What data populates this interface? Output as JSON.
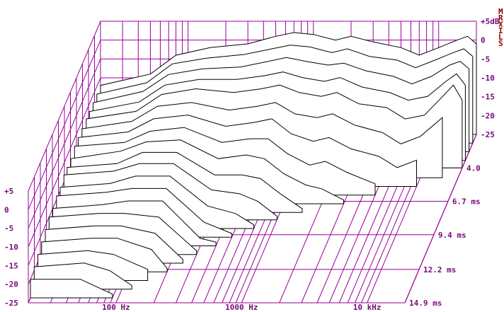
{
  "chart_data": {
    "type": "waterfall",
    "title": "",
    "x_scale": "log",
    "x_range_hz": [
      20,
      20000
    ],
    "x_tick_labels": [
      "100 Hz",
      "1000 Hz",
      "10 kHz"
    ],
    "x_tick_values_hz": [
      100,
      1000,
      10000
    ],
    "y_range_db": [
      -25,
      5
    ],
    "y_tick_labels_back": [
      "+5dB",
      "0",
      "-5",
      "-10",
      "-15",
      "-20",
      "-25"
    ],
    "y_tick_labels_front": [
      "+5",
      "0",
      "-5",
      "-10",
      "-15",
      "-20",
      "-25"
    ],
    "time_tick_labels": [
      "4.0",
      "6.7 ms",
      "9.4 ms",
      "12.2 ms",
      "14.9 ms"
    ],
    "time_range_ms": [
      1.3,
      14.9
    ],
    "corner_letters": [
      "M",
      "R",
      "X",
      "I",
      "L",
      "S"
    ],
    "grid_color": "#9b009b",
    "trace_color": "#000000",
    "slices": [
      {
        "time_ms": 1.3,
        "cutoff_hz": 20000,
        "points": [
          [
            20,
            -12
          ],
          [
            50,
            -9
          ],
          [
            80,
            -4
          ],
          [
            150,
            -2
          ],
          [
            300,
            -1
          ],
          [
            500,
            1
          ],
          [
            700,
            2
          ],
          [
            1000,
            1.5
          ],
          [
            1500,
            0
          ],
          [
            2000,
            1
          ],
          [
            3000,
            -0.5
          ],
          [
            5000,
            -2
          ],
          [
            7000,
            -4
          ],
          [
            10000,
            -2
          ],
          [
            14000,
            0
          ],
          [
            17000,
            1
          ],
          [
            20000,
            -1
          ]
        ]
      },
      {
        "time_ms": 2.0,
        "cutoff_hz": 20000,
        "points": [
          [
            20,
            -12
          ],
          [
            50,
            -9
          ],
          [
            80,
            -4
          ],
          [
            150,
            -2.5
          ],
          [
            300,
            -1.5
          ],
          [
            500,
            0
          ],
          [
            700,
            1
          ],
          [
            1000,
            0.5
          ],
          [
            1500,
            -1
          ],
          [
            2000,
            0
          ],
          [
            3000,
            -2
          ],
          [
            5000,
            -3
          ],
          [
            7000,
            -5
          ],
          [
            10000,
            -3
          ],
          [
            14000,
            -1
          ],
          [
            17000,
            0
          ],
          [
            20000,
            -2
          ]
        ]
      },
      {
        "time_ms": 2.7,
        "cutoff_hz": 20000,
        "points": [
          [
            20,
            -12
          ],
          [
            50,
            -9
          ],
          [
            80,
            -4.5
          ],
          [
            150,
            -3
          ],
          [
            300,
            -2.5
          ],
          [
            500,
            -1
          ],
          [
            700,
            0
          ],
          [
            1000,
            -1
          ],
          [
            1500,
            -2
          ],
          [
            2000,
            -1.5
          ],
          [
            3000,
            -3.5
          ],
          [
            5000,
            -5
          ],
          [
            7000,
            -7
          ],
          [
            10000,
            -5
          ],
          [
            14000,
            -2
          ],
          [
            17000,
            -1
          ],
          [
            20000,
            -3
          ]
        ]
      },
      {
        "time_ms": 3.4,
        "cutoff_hz": 20000,
        "points": [
          [
            20,
            -12
          ],
          [
            50,
            -9.5
          ],
          [
            80,
            -5
          ],
          [
            150,
            -3.5
          ],
          [
            300,
            -3.5
          ],
          [
            500,
            -2.5
          ],
          [
            700,
            -1.5
          ],
          [
            1000,
            -3
          ],
          [
            1500,
            -4
          ],
          [
            2000,
            -3
          ],
          [
            3000,
            -5.5
          ],
          [
            5000,
            -7
          ],
          [
            7000,
            -9
          ],
          [
            10000,
            -8
          ],
          [
            14000,
            -4
          ],
          [
            17000,
            -2
          ],
          [
            20000,
            -5
          ]
        ]
      },
      {
        "time_ms": 4.0,
        "cutoff_hz": 20000,
        "points": [
          [
            20,
            -12
          ],
          [
            50,
            -10
          ],
          [
            80,
            -5.5
          ],
          [
            150,
            -4
          ],
          [
            300,
            -5
          ],
          [
            500,
            -4
          ],
          [
            700,
            -3
          ],
          [
            1000,
            -5
          ],
          [
            1500,
            -6
          ],
          [
            2000,
            -5
          ],
          [
            3000,
            -8
          ],
          [
            5000,
            -9
          ],
          [
            7000,
            -12
          ],
          [
            10000,
            -11
          ],
          [
            14000,
            -6
          ],
          [
            17000,
            -3
          ],
          [
            20000,
            -7
          ]
        ]
      },
      {
        "time_ms": 4.8,
        "cutoff_hz": 15000,
        "points": [
          [
            20,
            -12
          ],
          [
            50,
            -10
          ],
          [
            80,
            -6
          ],
          [
            150,
            -5
          ],
          [
            300,
            -7
          ],
          [
            500,
            -6
          ],
          [
            700,
            -5
          ],
          [
            1000,
            -8
          ],
          [
            1500,
            -9
          ],
          [
            2000,
            -8
          ],
          [
            3000,
            -11
          ],
          [
            5000,
            -13
          ],
          [
            7000,
            -16
          ],
          [
            10000,
            -14
          ],
          [
            15000,
            -9
          ]
        ]
      },
      {
        "time_ms": 5.5,
        "cutoff_hz": 10000,
        "points": [
          [
            20,
            -12
          ],
          [
            50,
            -10.5
          ],
          [
            80,
            -7
          ],
          [
            150,
            -6
          ],
          [
            300,
            -9
          ],
          [
            500,
            -8
          ],
          [
            700,
            -7
          ],
          [
            1000,
            -11
          ],
          [
            1500,
            -13
          ],
          [
            2000,
            -12
          ],
          [
            3000,
            -15
          ],
          [
            5000,
            -17
          ],
          [
            7000,
            -20
          ],
          [
            10000,
            -18
          ]
        ]
      },
      {
        "time_ms": 6.2,
        "cutoff_hz": 5000,
        "points": [
          [
            20,
            -12
          ],
          [
            50,
            -11
          ],
          [
            80,
            -8
          ],
          [
            150,
            -7
          ],
          [
            300,
            -11
          ],
          [
            500,
            -10
          ],
          [
            700,
            -10
          ],
          [
            1000,
            -14
          ],
          [
            1500,
            -17
          ],
          [
            2000,
            -16
          ],
          [
            3000,
            -19
          ],
          [
            5000,
            -22
          ]
        ]
      },
      {
        "time_ms": 6.9,
        "cutoff_hz": 3000,
        "points": [
          [
            20,
            -13
          ],
          [
            50,
            -11
          ],
          [
            80,
            -8.5
          ],
          [
            150,
            -8
          ],
          [
            300,
            -13
          ],
          [
            500,
            -12
          ],
          [
            700,
            -13
          ],
          [
            1000,
            -17
          ],
          [
            1500,
            -20
          ],
          [
            2000,
            -21
          ],
          [
            3000,
            -24
          ]
        ]
      },
      {
        "time_ms": 7.6,
        "cutoff_hz": 1500,
        "points": [
          [
            20,
            -13
          ],
          [
            50,
            -12
          ],
          [
            80,
            -9
          ],
          [
            150,
            -9
          ],
          [
            300,
            -15
          ],
          [
            500,
            -15
          ],
          [
            700,
            -16
          ],
          [
            1000,
            -20
          ],
          [
            1500,
            -24
          ]
        ]
      },
      {
        "time_ms": 8.2,
        "cutoff_hz": 1000,
        "points": [
          [
            20,
            -13
          ],
          [
            50,
            -12
          ],
          [
            80,
            -10
          ],
          [
            150,
            -10
          ],
          [
            300,
            -17
          ],
          [
            500,
            -18
          ],
          [
            700,
            -20
          ],
          [
            1000,
            -24
          ]
        ]
      },
      {
        "time_ms": 8.9,
        "cutoff_hz": 700,
        "points": [
          [
            20,
            -14
          ],
          [
            50,
            -13
          ],
          [
            80,
            -11
          ],
          [
            150,
            -11
          ],
          [
            300,
            -19
          ],
          [
            500,
            -21
          ],
          [
            700,
            -24
          ]
        ]
      },
      {
        "time_ms": 9.6,
        "cutoff_hz": 500,
        "points": [
          [
            20,
            -14
          ],
          [
            50,
            -13
          ],
          [
            80,
            -12
          ],
          [
            150,
            -12
          ],
          [
            300,
            -21
          ],
          [
            500,
            -24
          ]
        ]
      },
      {
        "time_ms": 10.3,
        "cutoff_hz": 400,
        "points": [
          [
            20,
            -15
          ],
          [
            50,
            -14
          ],
          [
            80,
            -13
          ],
          [
            150,
            -13
          ],
          [
            300,
            -23
          ],
          [
            400,
            -24
          ]
        ]
      },
      {
        "time_ms": 11.0,
        "cutoff_hz": 300,
        "points": [
          [
            20,
            -15
          ],
          [
            50,
            -14
          ],
          [
            80,
            -14
          ],
          [
            150,
            -15
          ],
          [
            300,
            -24
          ]
        ]
      },
      {
        "time_ms": 11.7,
        "cutoff_hz": 250,
        "points": [
          [
            20,
            -16
          ],
          [
            50,
            -15
          ],
          [
            80,
            -15
          ],
          [
            150,
            -17
          ],
          [
            250,
            -24
          ]
        ]
      },
      {
        "time_ms": 12.4,
        "cutoff_hz": 200,
        "points": [
          [
            20,
            -17
          ],
          [
            50,
            -16
          ],
          [
            80,
            -16
          ],
          [
            150,
            -19
          ],
          [
            200,
            -24
          ]
        ]
      },
      {
        "time_ms": 13.1,
        "cutoff_hz": 150,
        "points": [
          [
            20,
            -18
          ],
          [
            50,
            -17
          ],
          [
            80,
            -18
          ],
          [
            150,
            -22
          ]
        ]
      },
      {
        "time_ms": 13.8,
        "cutoff_hz": 120,
        "points": [
          [
            20,
            -19
          ],
          [
            50,
            -18
          ],
          [
            80,
            -20
          ],
          [
            120,
            -24
          ]
        ]
      },
      {
        "time_ms": 14.5,
        "cutoff_hz": 90,
        "points": [
          [
            20,
            -20
          ],
          [
            50,
            -20
          ],
          [
            90,
            -24
          ]
        ]
      }
    ]
  }
}
